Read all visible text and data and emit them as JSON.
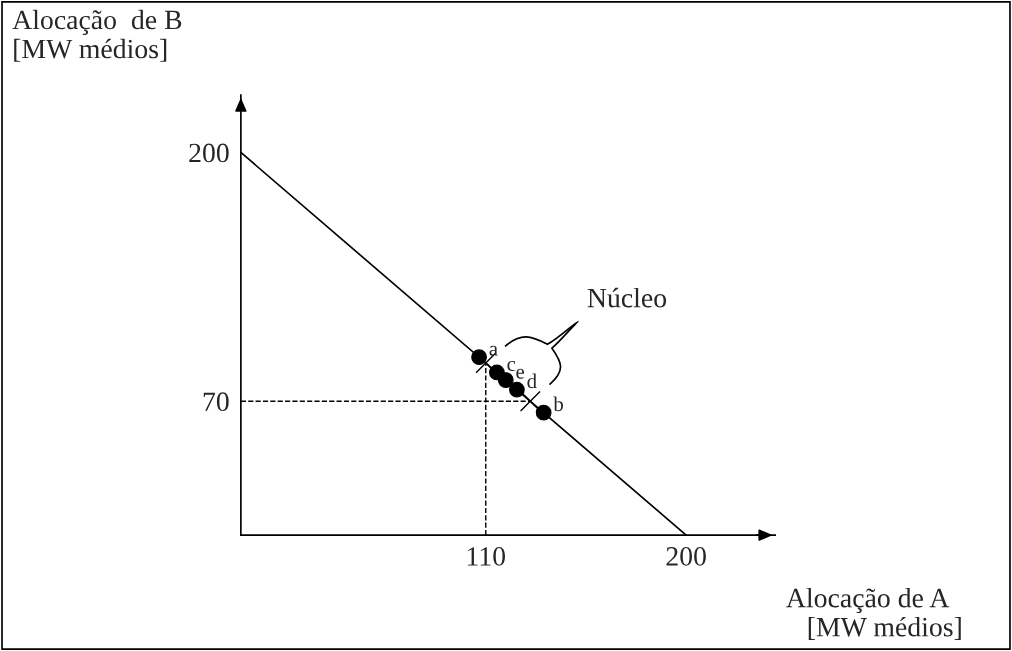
{
  "chart_data": {
    "type": "line",
    "xlabel": "Alocação de A\n   [MW médios]",
    "ylabel": "Alocação  de B\n[MW médios]",
    "xlim": [
      0,
      240
    ],
    "ylim": [
      0,
      230
    ],
    "xticks": [
      110,
      200
    ],
    "yticks": [
      70,
      200
    ],
    "grid": false,
    "series": [
      {
        "color": "#000000",
        "x": [
          0,
          200
        ],
        "values": [
          200,
          0
        ],
        "marker": "none"
      },
      {
        "type": "scatter",
        "color": "#000000",
        "x": [
          107,
          115,
          119,
          124,
          136
        ],
        "values": [
          93,
          85,
          81,
          76,
          64
        ],
        "marker": "circle"
      }
    ],
    "ref_lines": [
      {
        "axis": "x",
        "value": 110,
        "line_style": "dashed",
        "color": "#000000"
      },
      {
        "axis": "y",
        "value": 70,
        "line_style": "dashed",
        "color": "#000000"
      }
    ],
    "annotations": [
      {
        "text": "a",
        "x": 107,
        "y": 93
      },
      {
        "text": "c",
        "x": 115,
        "y": 85
      },
      {
        "text": "e",
        "x": 119,
        "y": 81
      },
      {
        "text": "d",
        "x": 124,
        "y": 76
      },
      {
        "text": "b",
        "x": 136,
        "y": 64
      },
      "Núcleo"
    ]
  }
}
